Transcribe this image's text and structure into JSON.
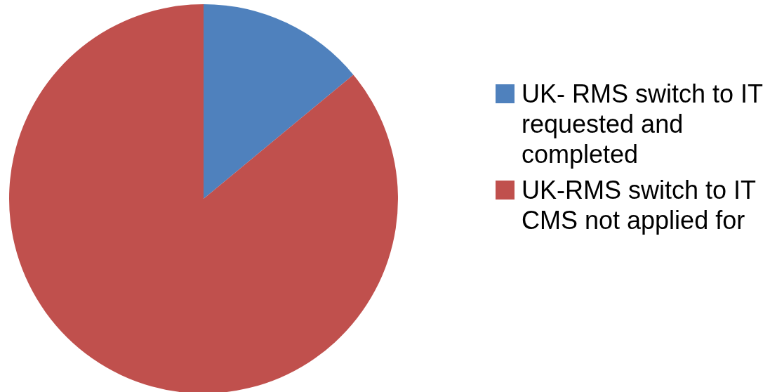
{
  "chart_data": {
    "type": "pie",
    "categories": [
      "UK- RMS switch to IT requested and completed",
      "UK-RMS switch to IT CMS not applied for"
    ],
    "values": [
      14,
      86
    ],
    "colors": [
      "#4f81bd",
      "#c0504d"
    ],
    "legend": "right"
  }
}
